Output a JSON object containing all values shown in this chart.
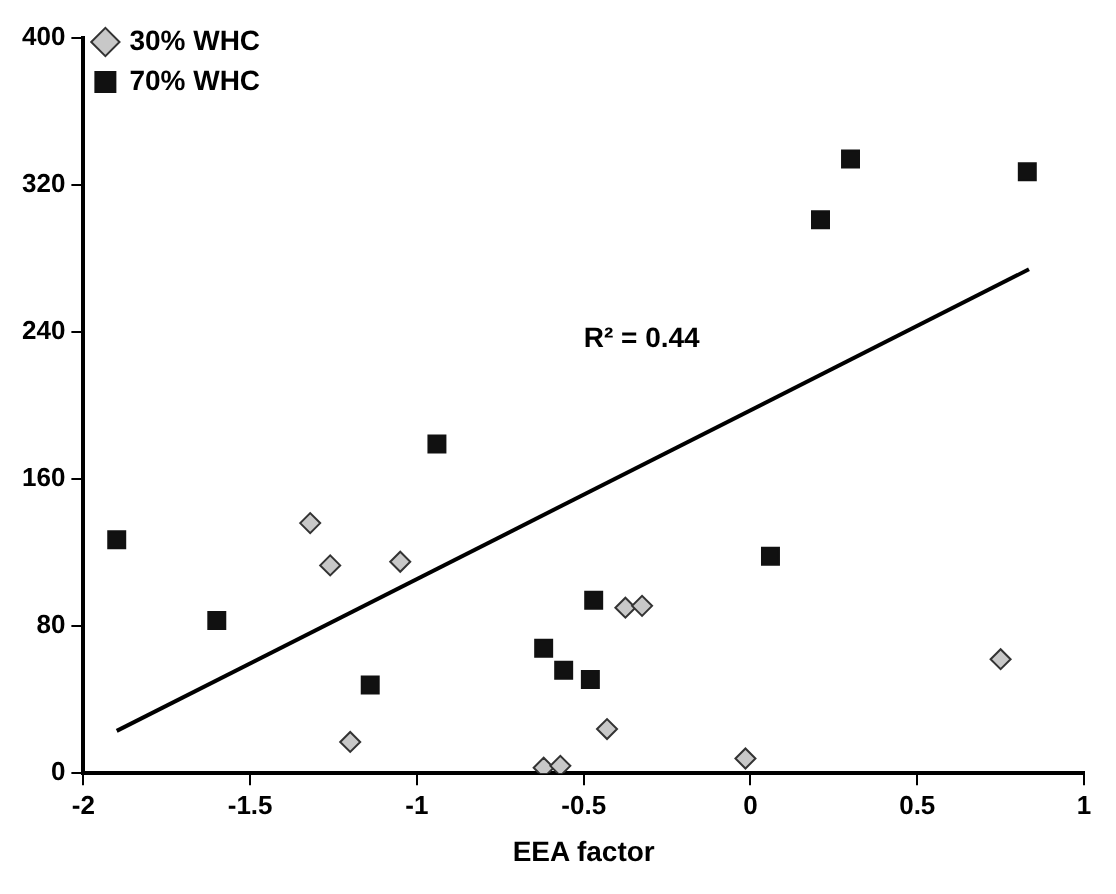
{
  "chart_data": {
    "type": "scatter",
    "xlabel": "EEA factor",
    "xlim": [
      -2,
      1
    ],
    "xticks": [
      -2,
      -1.5,
      -1,
      -0.5,
      0,
      0.5,
      1
    ],
    "ylim": [
      0,
      400
    ],
    "yticks": [
      0,
      80,
      160,
      240,
      320,
      400
    ],
    "grid": false,
    "legend": "top left",
    "annotations": [
      "R² = 0.44"
    ],
    "series": [
      {
        "name": "30% WHC",
        "color": "#c8c8c8",
        "marker": "diamond",
        "x": [
          -1.32,
          -1.26,
          -1.05,
          -1.2,
          -0.62,
          -0.57,
          -0.43,
          -0.375,
          -0.325,
          -0.015,
          0.75
        ],
        "values": [
          136,
          113,
          115,
          17,
          3,
          4,
          24,
          90,
          91,
          8,
          62
        ]
      },
      {
        "name": "70% WHC",
        "color": "#111111",
        "marker": "square",
        "x": [
          -1.9,
          -1.6,
          -1.14,
          -0.94,
          -0.62,
          -0.56,
          -0.48,
          -0.47,
          0.06,
          0.21,
          0.3,
          0.83
        ],
        "values": [
          127,
          83,
          48,
          179,
          68,
          56,
          51,
          94,
          118,
          301,
          334,
          327
        ]
      },
      {
        "type": "line",
        "color": "#000000",
        "marker": "none",
        "x": [
          -1.9,
          0.835
        ],
        "values": [
          23,
          274
        ]
      }
    ]
  }
}
